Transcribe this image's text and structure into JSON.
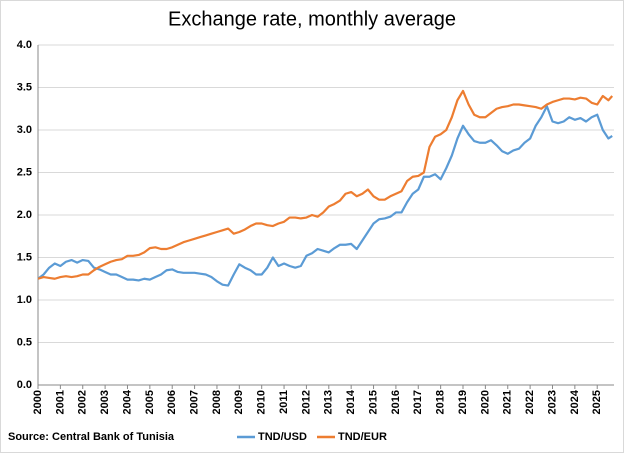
{
  "chart_data": {
    "type": "line",
    "title": "Exchange rate, monthly average",
    "source": "Source: Central Bank of Tunisia",
    "x": [
      2000,
      2000.25,
      2000.5,
      2000.75,
      2001,
      2001.25,
      2001.5,
      2001.75,
      2002,
      2002.25,
      2002.5,
      2002.75,
      2003,
      2003.25,
      2003.5,
      2003.75,
      2004,
      2004.25,
      2004.5,
      2004.75,
      2005,
      2005.25,
      2005.5,
      2005.75,
      2006,
      2006.25,
      2006.5,
      2006.75,
      2007,
      2007.25,
      2007.5,
      2007.75,
      2008,
      2008.25,
      2008.5,
      2008.75,
      2009,
      2009.25,
      2009.5,
      2009.75,
      2010,
      2010.25,
      2010.5,
      2010.75,
      2011,
      2011.25,
      2011.5,
      2011.75,
      2012,
      2012.25,
      2012.5,
      2012.75,
      2013,
      2013.25,
      2013.5,
      2013.75,
      2014,
      2014.25,
      2014.5,
      2014.75,
      2015,
      2015.25,
      2015.5,
      2015.75,
      2016,
      2016.25,
      2016.5,
      2016.75,
      2017,
      2017.25,
      2017.5,
      2017.75,
      2018,
      2018.25,
      2018.5,
      2018.75,
      2019,
      2019.25,
      2019.5,
      2019.75,
      2020,
      2020.25,
      2020.5,
      2020.75,
      2021,
      2021.25,
      2021.5,
      2021.75,
      2022,
      2022.25,
      2022.5,
      2022.75,
      2023,
      2023.25,
      2023.5,
      2023.75,
      2024,
      2024.25,
      2024.5,
      2024.75,
      2025,
      2025.25,
      2025.5,
      2025.67
    ],
    "series": [
      {
        "name": "TND/USD",
        "color": "#5b9bd5",
        "values": [
          1.25,
          1.3,
          1.38,
          1.43,
          1.4,
          1.45,
          1.47,
          1.44,
          1.47,
          1.46,
          1.38,
          1.36,
          1.33,
          1.3,
          1.3,
          1.27,
          1.24,
          1.24,
          1.23,
          1.25,
          1.24,
          1.27,
          1.3,
          1.35,
          1.36,
          1.33,
          1.32,
          1.32,
          1.32,
          1.31,
          1.3,
          1.27,
          1.22,
          1.18,
          1.17,
          1.3,
          1.42,
          1.38,
          1.35,
          1.3,
          1.3,
          1.38,
          1.5,
          1.4,
          1.43,
          1.4,
          1.38,
          1.4,
          1.52,
          1.55,
          1.6,
          1.58,
          1.56,
          1.61,
          1.65,
          1.65,
          1.66,
          1.6,
          1.7,
          1.8,
          1.9,
          1.95,
          1.96,
          1.98,
          2.03,
          2.03,
          2.15,
          2.25,
          2.3,
          2.45,
          2.45,
          2.48,
          2.42,
          2.55,
          2.7,
          2.9,
          3.05,
          2.95,
          2.87,
          2.85,
          2.85,
          2.88,
          2.82,
          2.75,
          2.72,
          2.76,
          2.78,
          2.85,
          2.9,
          3.05,
          3.15,
          3.28,
          3.1,
          3.08,
          3.1,
          3.15,
          3.12,
          3.14,
          3.1,
          3.15,
          3.18,
          3.0,
          2.9,
          2.93
        ]
      },
      {
        "name": "TND/EUR",
        "color": "#ed7d31",
        "values": [
          1.25,
          1.27,
          1.26,
          1.25,
          1.27,
          1.28,
          1.27,
          1.28,
          1.3,
          1.3,
          1.35,
          1.39,
          1.42,
          1.45,
          1.47,
          1.48,
          1.52,
          1.52,
          1.53,
          1.56,
          1.61,
          1.62,
          1.6,
          1.6,
          1.62,
          1.65,
          1.68,
          1.7,
          1.72,
          1.74,
          1.76,
          1.78,
          1.8,
          1.82,
          1.84,
          1.78,
          1.8,
          1.83,
          1.87,
          1.9,
          1.9,
          1.88,
          1.87,
          1.9,
          1.92,
          1.97,
          1.97,
          1.96,
          1.97,
          2.0,
          1.98,
          2.03,
          2.1,
          2.13,
          2.17,
          2.25,
          2.27,
          2.22,
          2.25,
          2.3,
          2.22,
          2.18,
          2.18,
          2.22,
          2.25,
          2.28,
          2.4,
          2.45,
          2.46,
          2.5,
          2.8,
          2.92,
          2.95,
          3.0,
          3.15,
          3.35,
          3.46,
          3.3,
          3.18,
          3.15,
          3.15,
          3.2,
          3.25,
          3.27,
          3.28,
          3.3,
          3.3,
          3.29,
          3.28,
          3.27,
          3.25,
          3.3,
          3.33,
          3.35,
          3.37,
          3.37,
          3.36,
          3.38,
          3.37,
          3.32,
          3.3,
          3.4,
          3.35,
          3.4
        ]
      }
    ],
    "xlim": [
      2000,
      2025.75
    ],
    "xticks": [
      2000,
      2001,
      2002,
      2003,
      2004,
      2005,
      2006,
      2007,
      2008,
      2009,
      2010,
      2011,
      2012,
      2013,
      2014,
      2015,
      2016,
      2017,
      2018,
      2019,
      2020,
      2021,
      2022,
      2023,
      2024,
      2025
    ],
    "ylim": [
      0,
      4
    ],
    "yticks": [
      {
        "value": 0,
        "label": "0.0"
      },
      {
        "value": 0.5,
        "label": "0.5"
      },
      {
        "value": 1,
        "label": "1.0"
      },
      {
        "value": 1.5,
        "label": "1.5"
      },
      {
        "value": 2,
        "label": "2.0"
      },
      {
        "value": 2.5,
        "label": "2.5"
      },
      {
        "value": 3,
        "label": "3.0"
      },
      {
        "value": 3.5,
        "label": "3.5"
      },
      {
        "value": 4,
        "label": "4.0"
      }
    ],
    "grid": true
  }
}
